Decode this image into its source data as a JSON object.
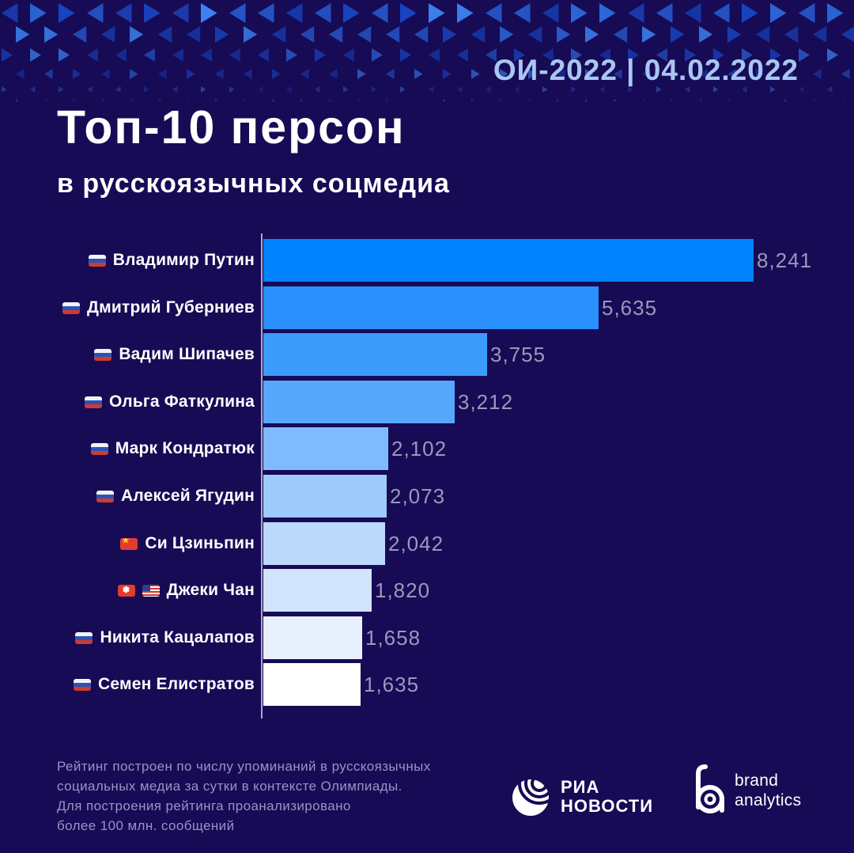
{
  "header": {
    "event_date": "ОИ-2022 | 04.02.2022"
  },
  "title": {
    "main": "Топ-10 персон",
    "sub": "в русскоязычных соцмедиа"
  },
  "chart_data": {
    "type": "bar",
    "orientation": "horizontal",
    "title": "Топ-10 персон в русскоязычных соцмедиа",
    "xlim": [
      0,
      8241
    ],
    "max_value": 8241,
    "grid": false,
    "legend": false,
    "categories": [
      "Владимир Путин",
      "Дмитрий Губерниев",
      "Вадим Шипачев",
      "Ольга Фаткулина",
      "Марк Кондратюк",
      "Алексей Ягудин",
      "Си Цзиньпин",
      "Джеки Чан",
      "Никита Кацалапов",
      "Семен Елистратов"
    ],
    "rows": [
      {
        "name": "Владимир Путин",
        "flags": [
          "ru"
        ],
        "value": 8241,
        "value_label": "8,241",
        "color": "#0082fc"
      },
      {
        "name": "Дмитрий Губерниев",
        "flags": [
          "ru"
        ],
        "value": 5635,
        "value_label": "5,635",
        "color": "#2a90fc"
      },
      {
        "name": "Вадим Шипачев",
        "flags": [
          "ru"
        ],
        "value": 3755,
        "value_label": "3,755",
        "color": "#3d9bfc"
      },
      {
        "name": "Ольга Фаткулина",
        "flags": [
          "ru"
        ],
        "value": 3212,
        "value_label": "3,212",
        "color": "#57a7fc"
      },
      {
        "name": "Марк Кондратюк",
        "flags": [
          "ru"
        ],
        "value": 2102,
        "value_label": "2,102",
        "color": "#7fbbfc"
      },
      {
        "name": "Алексей Ягудин",
        "flags": [
          "ru"
        ],
        "value": 2073,
        "value_label": "2,073",
        "color": "#9ec9fb"
      },
      {
        "name": "Си Цзиньпин",
        "flags": [
          "cn"
        ],
        "value": 2042,
        "value_label": "2,042",
        "color": "#bcd9fc"
      },
      {
        "name": "Джеки Чан",
        "flags": [
          "hk",
          "us"
        ],
        "value": 1820,
        "value_label": "1,820",
        "color": "#d2e4fb"
      },
      {
        "name": "Никита Кацалапов",
        "flags": [
          "ru"
        ],
        "value": 1658,
        "value_label": "1,658",
        "color": "#e8f1fb"
      },
      {
        "name": "Семен Елистратов",
        "flags": [
          "ru"
        ],
        "value": 1635,
        "value_label": "1,635",
        "color": "#ffffff"
      }
    ]
  },
  "footer": {
    "note_lines": [
      "Рейтинг построен по числу упоминаний в русскоязычных",
      "социальных медиа за сутки в контексте Олимпиады.",
      "Для построения рейтинга проанализировано",
      "более 100 млн. сообщений"
    ],
    "logos": {
      "ria": {
        "line1": "РИА",
        "line2": "НОВОСТИ"
      },
      "brand": {
        "line1": "brand",
        "line2": "analytics"
      }
    }
  },
  "colors": {
    "background": "#170b56",
    "date_text": "#a9c6f2",
    "value_text": "#9b98bb",
    "note_text": "#9a93c4",
    "bar_top": "#0082fc",
    "bar_bottom": "#ffffff"
  }
}
